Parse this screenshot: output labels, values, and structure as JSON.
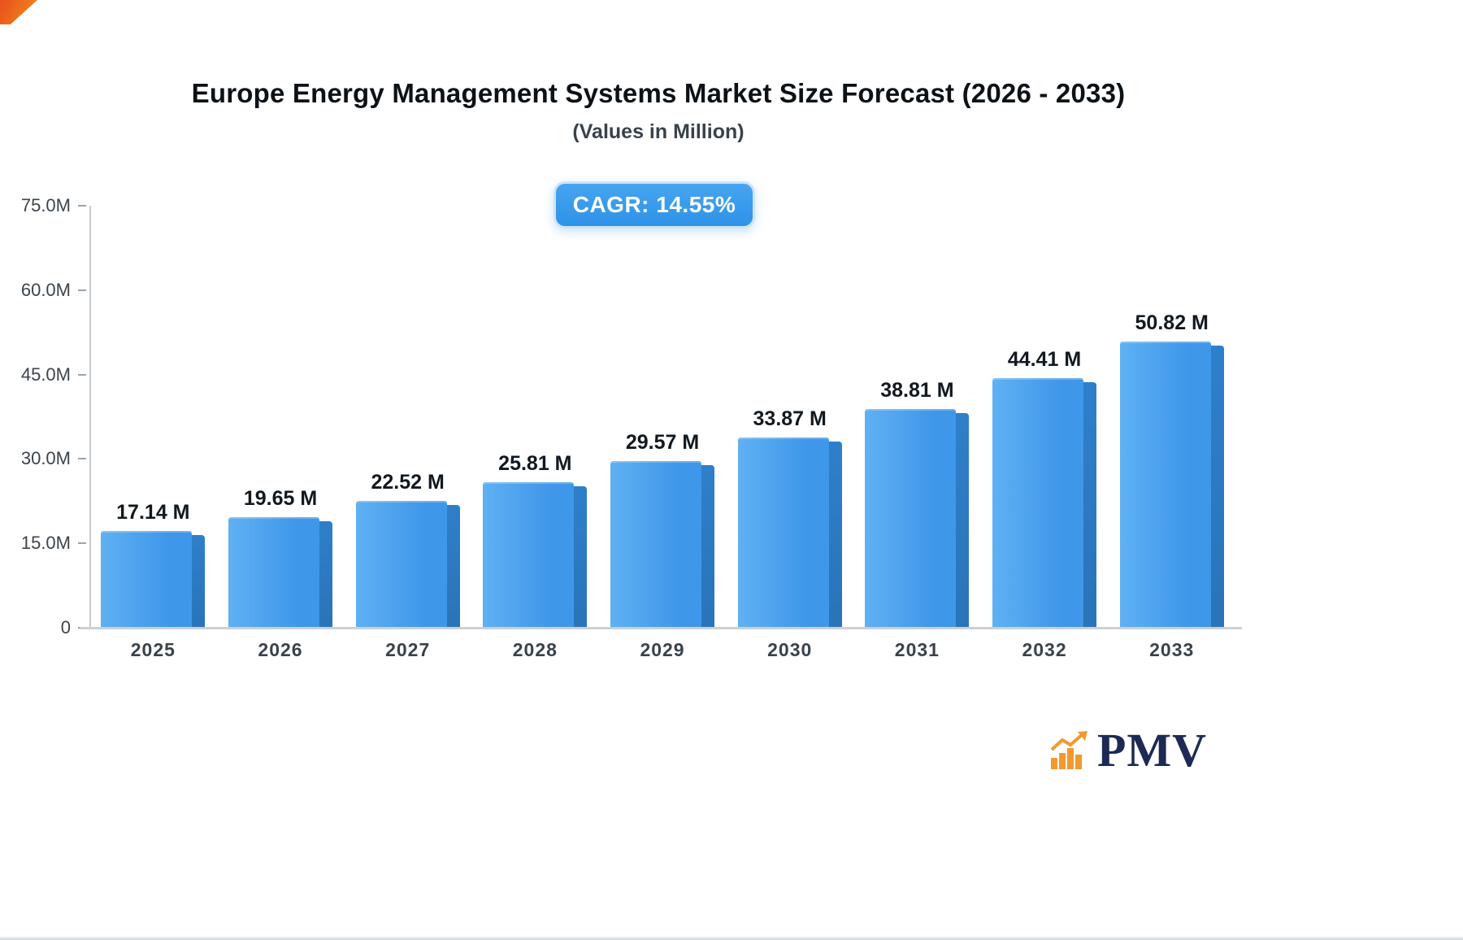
{
  "chart_data": {
    "type": "bar",
    "title": "Europe Energy Management Systems Market Size Forecast (2026 - 2033)",
    "subtitle": "(Values in Million)",
    "cagr_label": "CAGR: 14.55%",
    "categories": [
      "2025",
      "2026",
      "2027",
      "2028",
      "2029",
      "2030",
      "2031",
      "2032",
      "2033"
    ],
    "values": [
      17.14,
      19.65,
      22.52,
      25.81,
      29.57,
      33.87,
      38.81,
      44.41,
      50.82
    ],
    "value_labels": [
      "17.14 M",
      "19.65 M",
      "22.52 M",
      "25.81 M",
      "29.57 M",
      "33.87 M",
      "38.81 M",
      "44.41 M",
      "50.82 M"
    ],
    "xlabel": "",
    "ylabel": "",
    "ylim": [
      0,
      75
    ],
    "yticks": [
      {
        "value": 75,
        "label": "75.0M"
      },
      {
        "value": 60,
        "label": "60.0M"
      },
      {
        "value": 45,
        "label": "45.0M"
      },
      {
        "value": 30,
        "label": "30.0M"
      },
      {
        "value": 15,
        "label": "15.0M"
      },
      {
        "value": 0,
        "label": "0"
      }
    ],
    "grid": false,
    "legend_position": "none",
    "colors": {
      "bar_light": "#5fb1f3",
      "bar_main": "#3f97ea",
      "bar_side": "#2e7fca",
      "bar_side_dark": "#2a74b8",
      "badge_light": "#46a5f1",
      "badge": "#2e92e7"
    }
  },
  "branding": {
    "logo_text": "PMV",
    "logo_icon": "bar-chart-icon",
    "logo_color": "#1c2a55",
    "icon_color": "#f2992e"
  }
}
